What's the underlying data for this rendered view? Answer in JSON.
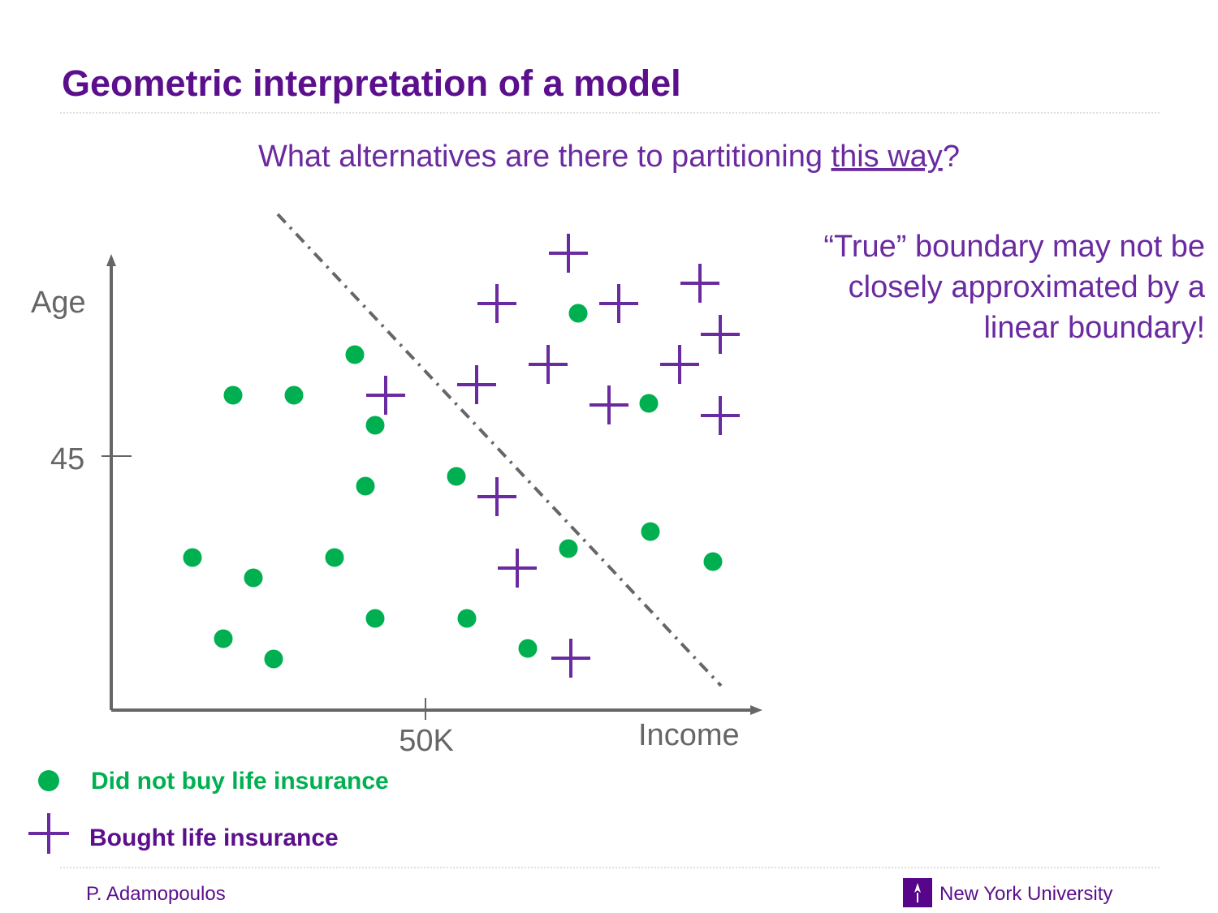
{
  "header": {
    "title": "Geometric interpretation of a model"
  },
  "question": {
    "parts": [
      "What alternatives are there to partitioning ",
      "this way",
      "?"
    ]
  },
  "note": {
    "lines": [
      "“True” boundary may not be",
      "closely approximated by a",
      "linear boundary!"
    ]
  },
  "plot": {
    "y_label": "Age",
    "y_tick": "45",
    "x_tick": "50K",
    "x_label": "Income"
  },
  "legend": {
    "circle": "Did not buy life insurance",
    "plus": "Bought life insurance"
  },
  "footer": {
    "author": "P. Adamopoulos",
    "institution": "New York University"
  }
}
